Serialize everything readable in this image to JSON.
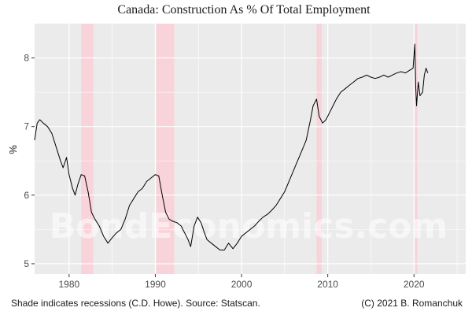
{
  "chart_data": {
    "type": "line",
    "title": "Canada: Construction As % Of Total Employment",
    "ylabel": "%",
    "xlabel": "",
    "xlim": [
      1976,
      2026
    ],
    "ylim": [
      4.85,
      8.5
    ],
    "x_ticks": [
      1980,
      1990,
      2000,
      2010,
      2020
    ],
    "y_ticks": [
      5,
      6,
      7,
      8
    ],
    "grid": true,
    "background": "#ebebeb",
    "line_color": "#000000",
    "recession_color": "#f9d3da",
    "recessions": [
      {
        "start": 1981.4,
        "end": 1982.8
      },
      {
        "start": 1990.1,
        "end": 1992.2
      },
      {
        "start": 2008.7,
        "end": 2009.3
      },
      {
        "start": 2020.1,
        "end": 2020.4
      }
    ],
    "series": [
      {
        "points": [
          [
            1976.0,
            6.8
          ],
          [
            1976.3,
            7.05
          ],
          [
            1976.6,
            7.1
          ],
          [
            1977.0,
            7.05
          ],
          [
            1977.5,
            7.0
          ],
          [
            1978.0,
            6.9
          ],
          [
            1978.5,
            6.7
          ],
          [
            1979.0,
            6.5
          ],
          [
            1979.3,
            6.4
          ],
          [
            1979.7,
            6.55
          ],
          [
            1980.0,
            6.3
          ],
          [
            1980.4,
            6.1
          ],
          [
            1980.7,
            6.0
          ],
          [
            1981.0,
            6.15
          ],
          [
            1981.4,
            6.3
          ],
          [
            1981.8,
            6.28
          ],
          [
            1982.2,
            6.05
          ],
          [
            1982.6,
            5.75
          ],
          [
            1983.0,
            5.65
          ],
          [
            1983.5,
            5.55
          ],
          [
            1984.0,
            5.4
          ],
          [
            1984.5,
            5.3
          ],
          [
            1985.0,
            5.38
          ],
          [
            1985.5,
            5.45
          ],
          [
            1986.0,
            5.5
          ],
          [
            1986.5,
            5.65
          ],
          [
            1987.0,
            5.85
          ],
          [
            1987.5,
            5.95
          ],
          [
            1988.0,
            6.05
          ],
          [
            1988.5,
            6.1
          ],
          [
            1989.0,
            6.2
          ],
          [
            1989.5,
            6.25
          ],
          [
            1990.0,
            6.3
          ],
          [
            1990.4,
            6.28
          ],
          [
            1990.8,
            6.0
          ],
          [
            1991.2,
            5.75
          ],
          [
            1991.6,
            5.65
          ],
          [
            1992.0,
            5.62
          ],
          [
            1992.5,
            5.6
          ],
          [
            1993.0,
            5.55
          ],
          [
            1993.4,
            5.45
          ],
          [
            1993.8,
            5.35
          ],
          [
            1994.1,
            5.25
          ],
          [
            1994.5,
            5.55
          ],
          [
            1994.9,
            5.68
          ],
          [
            1995.3,
            5.6
          ],
          [
            1995.7,
            5.45
          ],
          [
            1996.0,
            5.35
          ],
          [
            1996.5,
            5.3
          ],
          [
            1997.0,
            5.25
          ],
          [
            1997.5,
            5.2
          ],
          [
            1998.0,
            5.2
          ],
          [
            1998.5,
            5.3
          ],
          [
            1999.0,
            5.22
          ],
          [
            1999.5,
            5.3
          ],
          [
            2000.0,
            5.4
          ],
          [
            2000.5,
            5.45
          ],
          [
            2001.0,
            5.5
          ],
          [
            2001.5,
            5.55
          ],
          [
            2002.0,
            5.62
          ],
          [
            2002.5,
            5.68
          ],
          [
            2003.0,
            5.72
          ],
          [
            2003.5,
            5.78
          ],
          [
            2004.0,
            5.85
          ],
          [
            2004.5,
            5.95
          ],
          [
            2005.0,
            6.05
          ],
          [
            2005.5,
            6.2
          ],
          [
            2006.0,
            6.35
          ],
          [
            2006.5,
            6.5
          ],
          [
            2007.0,
            6.65
          ],
          [
            2007.5,
            6.8
          ],
          [
            2008.0,
            7.1
          ],
          [
            2008.3,
            7.3
          ],
          [
            2008.7,
            7.4
          ],
          [
            2009.0,
            7.15
          ],
          [
            2009.4,
            7.05
          ],
          [
            2009.8,
            7.1
          ],
          [
            2010.2,
            7.2
          ],
          [
            2010.6,
            7.3
          ],
          [
            2011.0,
            7.4
          ],
          [
            2011.5,
            7.5
          ],
          [
            2012.0,
            7.55
          ],
          [
            2012.5,
            7.6
          ],
          [
            2013.0,
            7.65
          ],
          [
            2013.5,
            7.7
          ],
          [
            2014.0,
            7.72
          ],
          [
            2014.5,
            7.75
          ],
          [
            2015.0,
            7.72
          ],
          [
            2015.5,
            7.7
          ],
          [
            2016.0,
            7.72
          ],
          [
            2016.5,
            7.75
          ],
          [
            2017.0,
            7.72
          ],
          [
            2017.5,
            7.75
          ],
          [
            2018.0,
            7.78
          ],
          [
            2018.5,
            7.8
          ],
          [
            2019.0,
            7.78
          ],
          [
            2019.5,
            7.82
          ],
          [
            2019.9,
            7.85
          ],
          [
            2020.1,
            8.2
          ],
          [
            2020.2,
            7.6
          ],
          [
            2020.3,
            7.3
          ],
          [
            2020.5,
            7.65
          ],
          [
            2020.7,
            7.45
          ],
          [
            2021.0,
            7.5
          ],
          [
            2021.2,
            7.75
          ],
          [
            2021.4,
            7.85
          ],
          [
            2021.6,
            7.78
          ]
        ]
      }
    ]
  },
  "caption_left": "Shade indicates recessions (C.D. Howe). Source: Statscan.",
  "caption_right": "(C) 2021 B. Romanchuk",
  "watermark": "BondEconomics.com"
}
